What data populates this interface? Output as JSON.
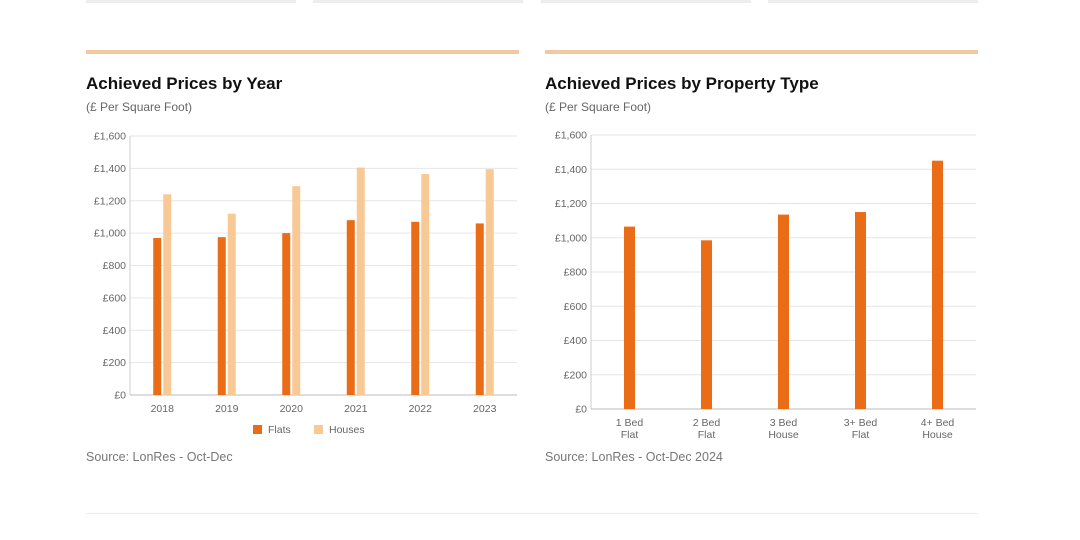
{
  "colors": {
    "flats": "#ea6c16",
    "houses": "#f8c895",
    "accent_rule": "#f0c9a0",
    "grid": "#e6e6e6"
  },
  "left_panel": {
    "title": "Achieved Prices by Year",
    "subtitle": "(£ Per Square Foot)",
    "source": "Source: LonRes - Oct-Dec"
  },
  "right_panel": {
    "title": "Achieved Prices by Property Type",
    "subtitle": "(£ Per Square Foot)",
    "source": "Source: LonRes - Oct-Dec 2024"
  },
  "chart_data": [
    {
      "type": "bar",
      "title": "Achieved Prices by Year",
      "subtitle": "(£ Per Square Foot)",
      "categories": [
        "2018",
        "2019",
        "2020",
        "2021",
        "2022",
        "2023"
      ],
      "series": [
        {
          "name": "Flats",
          "values": [
            970,
            975,
            1000,
            1080,
            1070,
            1060
          ]
        },
        {
          "name": "Houses",
          "values": [
            1240,
            1120,
            1290,
            1405,
            1365,
            1395
          ]
        }
      ],
      "yticks": [
        "£0",
        "£200",
        "£400",
        "£600",
        "£800",
        "£1,000",
        "£1,200",
        "£1,400",
        "£1,600"
      ],
      "ylim": [
        0,
        1600
      ],
      "grid": true,
      "legend": "bottom"
    },
    {
      "type": "bar",
      "title": "Achieved Prices by Property Type",
      "subtitle": "(£ Per Square Foot)",
      "categories": [
        [
          "1 Bed",
          "Flat"
        ],
        [
          "2 Bed",
          "Flat"
        ],
        [
          "3 Bed",
          "House"
        ],
        [
          "3+ Bed",
          "Flat"
        ],
        [
          "4+ Bed",
          "House"
        ]
      ],
      "values": [
        1065,
        985,
        1135,
        1150,
        1450
      ],
      "yticks": [
        "£0",
        "£200",
        "£400",
        "£600",
        "£800",
        "£1,000",
        "£1,200",
        "£1,400",
        "£1,600"
      ],
      "ylim": [
        0,
        1600
      ],
      "grid": true
    }
  ]
}
